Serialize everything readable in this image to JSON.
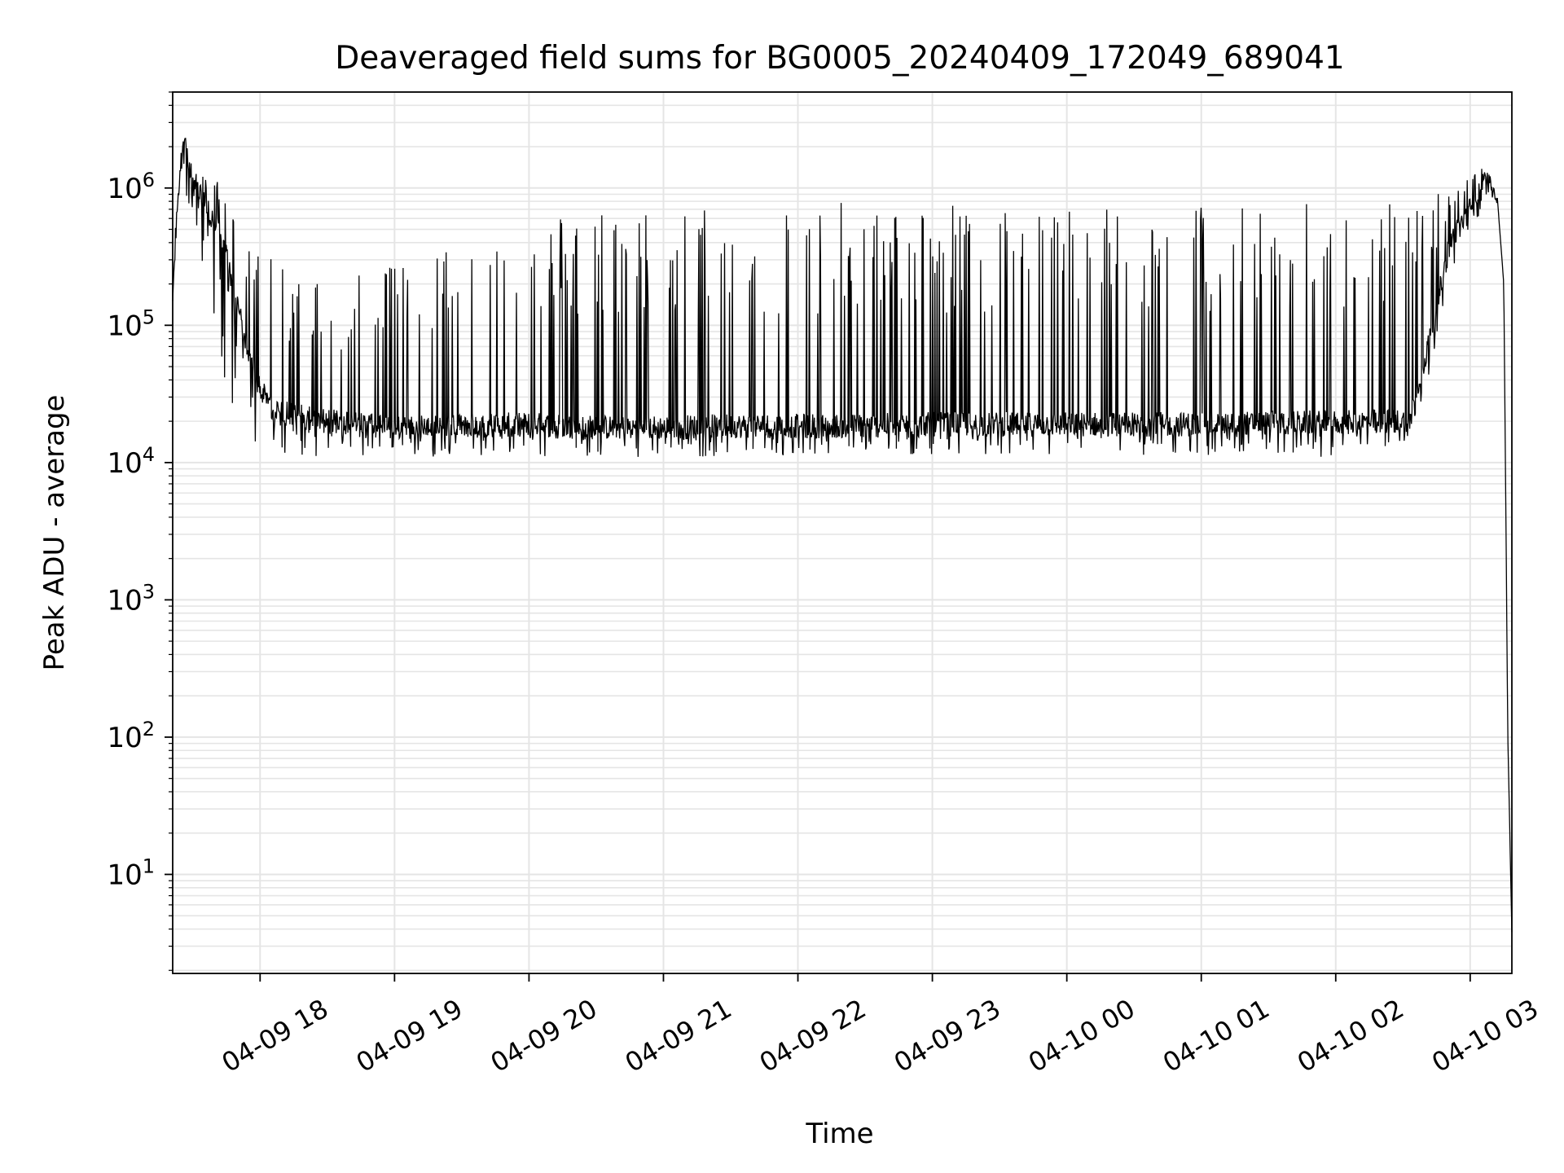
{
  "chart_data": {
    "type": "line",
    "title": "Deaveraged field sums for BG0005_20240409_172049_689041",
    "xlabel": "Time",
    "ylabel": "Peak ADU - average",
    "y_scale": "log",
    "grid": true,
    "grid_minor": true,
    "line_color": "#000000",
    "grid_color": "#e5e5e5",
    "x_tick_labels": [
      "04-09 18",
      "04-09 19",
      "04-09 20",
      "04-09 21",
      "04-09 22",
      "04-09 23",
      "04-10 00",
      "04-10 01",
      "04-10 02",
      "04-10 03"
    ],
    "x_ticks_hours": [
      18,
      19,
      20,
      21,
      22,
      23,
      24,
      25,
      26,
      27
    ],
    "xlim_hours": [
      17.35,
      27.31
    ],
    "y_tick_labels": [
      {
        "base": "10",
        "exp": "1",
        "value": 10
      },
      {
        "base": "10",
        "exp": "2",
        "value": 100
      },
      {
        "base": "10",
        "exp": "3",
        "value": 1000
      },
      {
        "base": "10",
        "exp": "4",
        "value": 10000
      },
      {
        "base": "10",
        "exp": "5",
        "value": 100000
      },
      {
        "base": "10",
        "exp": "6",
        "value": 1000000
      }
    ],
    "ylim": [
      1.9,
      5000000
    ],
    "series": [
      {
        "x_hours": [
          17.35,
          17.4,
          17.45,
          17.5,
          17.55,
          17.6,
          17.7,
          17.8,
          17.9,
          18.0,
          18.1,
          18.25,
          18.5,
          19.0,
          19.5,
          20.0,
          20.5,
          21.0,
          21.5,
          22.0,
          22.5,
          23.0,
          23.5,
          24.0,
          24.5,
          25.0,
          25.5,
          26.0,
          26.4,
          26.55,
          26.7,
          26.85,
          27.0,
          27.1,
          27.15,
          27.2,
          27.25,
          27.28,
          27.31
        ],
        "baseline_values": [
          150000,
          1500000,
          2000000,
          1100000,
          900000,
          700000,
          500000,
          200000,
          70000,
          35000,
          24000,
          22000,
          20000,
          18000,
          18500,
          19000,
          18000,
          18000,
          18500,
          18500,
          18500,
          19000,
          19000,
          19000,
          19000,
          19000,
          19500,
          19500,
          20000,
          20000,
          80000,
          400000,
          700000,
          1100000,
          1100000,
          900000,
          200000,
          100,
          3.8
        ],
        "spike_values": [
          300000,
          2000000,
          2500000,
          1500000,
          1400000,
          1300000,
          1200000,
          700000,
          500000,
          400000,
          300000,
          250000,
          200000,
          300000,
          400000,
          600000,
          800000,
          700000,
          800000,
          800000,
          800000,
          800000,
          800000,
          800000,
          800000,
          800000,
          800000,
          800000,
          800000,
          800000,
          900000,
          1200000,
          1300000,
          1400000,
          1300000,
          1100000,
          300000,
          100,
          3.8
        ],
        "dip_values": [
          150000,
          1000000,
          900000,
          400000,
          250000,
          150000,
          50000,
          25000,
          15000,
          12000,
          11000,
          11000,
          11000,
          11000,
          11000,
          11000,
          11000,
          11000,
          11000,
          11000,
          11000,
          11000,
          11000,
          11000,
          11000,
          11000,
          11000,
          11000,
          13000,
          14000,
          40000,
          200000,
          500000,
          700000,
          900000,
          800000,
          200000,
          100,
          3.8
        ]
      }
    ]
  }
}
